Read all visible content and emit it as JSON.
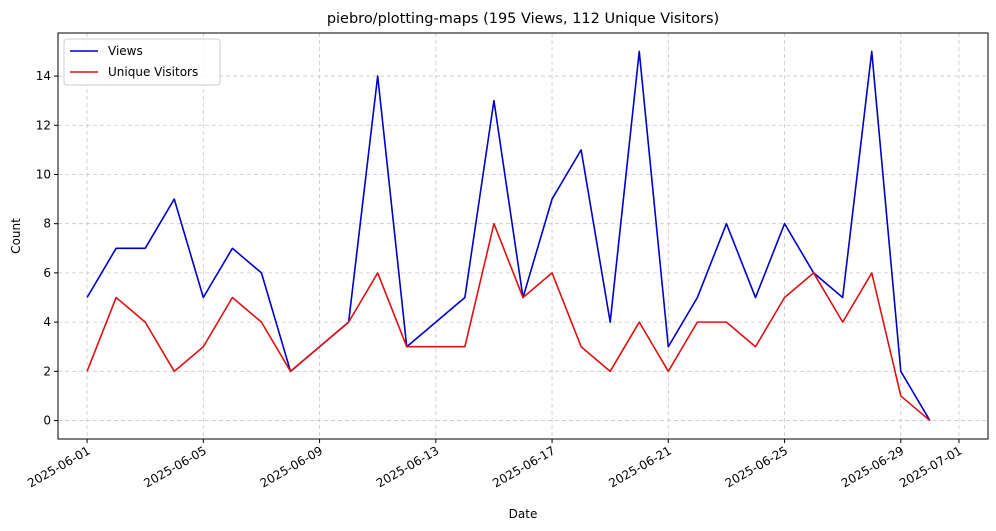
{
  "chart_data": {
    "type": "line",
    "title": "piebro/plotting-maps (195 Views, 112 Unique Visitors)",
    "xlabel": "Date",
    "ylabel": "Count",
    "x": [
      "2025-06-01",
      "2025-06-02",
      "2025-06-03",
      "2025-06-04",
      "2025-06-05",
      "2025-06-06",
      "2025-06-07",
      "2025-06-08",
      "2025-06-09",
      "2025-06-10",
      "2025-06-11",
      "2025-06-12",
      "2025-06-13",
      "2025-06-14",
      "2025-06-15",
      "2025-06-16",
      "2025-06-17",
      "2025-06-18",
      "2025-06-19",
      "2025-06-20",
      "2025-06-21",
      "2025-06-22",
      "2025-06-23",
      "2025-06-24",
      "2025-06-25",
      "2025-06-26",
      "2025-06-27",
      "2025-06-28",
      "2025-06-29",
      "2025-06-30"
    ],
    "series": [
      {
        "name": "Views",
        "color": "#0000cc",
        "values": [
          5,
          7,
          7,
          9,
          5,
          7,
          6,
          2,
          3,
          4,
          14,
          3,
          4,
          5,
          13,
          5,
          9,
          11,
          4,
          15,
          3,
          5,
          8,
          5,
          8,
          6,
          5,
          15,
          2,
          0
        ]
      },
      {
        "name": "Unique Visitors",
        "color": "#dd1111",
        "values": [
          2,
          5,
          4,
          2,
          3,
          5,
          4,
          2,
          3,
          4,
          6,
          3,
          3,
          3,
          8,
          5,
          6,
          3,
          2,
          4,
          2,
          4,
          4,
          3,
          5,
          6,
          4,
          6,
          1,
          0
        ]
      }
    ],
    "xticks": [
      "2025-06-01",
      "2025-06-05",
      "2025-06-09",
      "2025-06-13",
      "2025-06-17",
      "2025-06-21",
      "2025-06-25",
      "2025-06-29",
      "2025-07-01"
    ],
    "yticks": [
      0,
      2,
      4,
      6,
      8,
      10,
      12,
      14
    ],
    "ylim": [
      -0.75,
      15.75
    ],
    "xlim": [
      "2025-05-31",
      "2025-07-02"
    ],
    "grid": true,
    "legend_position": "top-left"
  }
}
